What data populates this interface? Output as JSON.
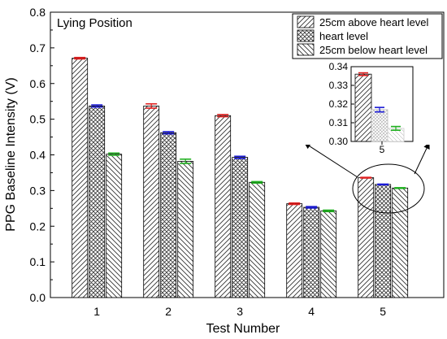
{
  "chart_data": {
    "type": "bar",
    "title": "Lying Position",
    "xlabel": "Test Number",
    "ylabel": "PPG Baseline Intensity (V)",
    "categories": [
      "1",
      "2",
      "3",
      "4",
      "5"
    ],
    "ylim": [
      0,
      0.8
    ],
    "yticks": [
      "0.0",
      "0.1",
      "0.2",
      "0.3",
      "0.4",
      "0.5",
      "0.6",
      "0.7",
      "0.8"
    ],
    "legend_position": "top-right",
    "series": [
      {
        "name": "25cm above heart level",
        "values": [
          0.671,
          0.537,
          0.51,
          0.263,
          0.336
        ],
        "errors": [
          0.002,
          0.006,
          0.003,
          0.002,
          0.001
        ],
        "pattern": "diagonal-hatch",
        "error_color": "#e02020"
      },
      {
        "name": "heart level",
        "values": [
          0.537,
          0.462,
          0.393,
          0.253,
          0.317
        ],
        "errors": [
          0.003,
          0.003,
          0.003,
          0.002,
          0.001
        ],
        "pattern": "cross-hatch",
        "error_color": "#1a1ad6"
      },
      {
        "name": "25cm below heart level",
        "values": [
          0.402,
          0.382,
          0.323,
          0.243,
          0.307
        ],
        "errors": [
          0.003,
          0.006,
          0.002,
          0.002,
          0.001
        ],
        "pattern": "back-diagonal-hatch",
        "error_color": "#20b020"
      }
    ],
    "inset": {
      "category": "5",
      "ylim": [
        0.3,
        0.34
      ],
      "yticks": [
        "0.30",
        "0.31",
        "0.32",
        "0.33",
        "0.34"
      ],
      "values": [
        0.336,
        0.317,
        0.307
      ],
      "errors": [
        0.0007,
        0.0012,
        0.001
      ]
    }
  }
}
